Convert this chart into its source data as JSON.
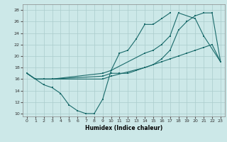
{
  "xlabel": "Humidex (Indice chaleur)",
  "ylabel": "",
  "xlim": [
    -0.5,
    23.5
  ],
  "ylim": [
    9.5,
    29.0
  ],
  "xticks": [
    0,
    1,
    2,
    3,
    4,
    5,
    6,
    7,
    8,
    9,
    10,
    11,
    12,
    13,
    14,
    15,
    16,
    17,
    18,
    19,
    20,
    21,
    22,
    23
  ],
  "yticks": [
    10,
    12,
    14,
    16,
    18,
    20,
    22,
    24,
    26,
    28
  ],
  "background_color": "#cce8e8",
  "grid_color": "#aacccc",
  "line_color": "#1a6b6b",
  "line1_x": [
    0,
    1,
    2,
    3,
    4,
    5,
    6,
    7,
    8,
    9,
    10,
    11,
    12,
    13,
    14,
    15,
    16,
    17
  ],
  "line1_y": [
    17.0,
    16.0,
    15.0,
    14.5,
    13.5,
    11.5,
    10.5,
    10.0,
    10.0,
    12.5,
    17.5,
    20.5,
    21.0,
    23.0,
    25.5,
    25.5,
    26.5,
    27.5
  ],
  "line2_x": [
    0,
    1,
    2,
    3,
    9,
    10,
    14,
    15,
    16,
    17,
    18,
    20,
    21,
    23
  ],
  "line2_y": [
    17.0,
    16.0,
    16.0,
    16.0,
    17.0,
    17.5,
    20.5,
    21.0,
    22.0,
    23.5,
    27.5,
    26.5,
    23.5,
    19.0
  ],
  "line3_x": [
    0,
    1,
    2,
    3,
    9,
    10,
    14,
    15,
    16,
    17,
    18,
    19,
    20,
    21,
    22,
    23
  ],
  "line3_y": [
    17.0,
    16.0,
    16.0,
    16.0,
    16.0,
    16.5,
    18.0,
    18.5,
    19.5,
    21.0,
    24.5,
    26.0,
    27.0,
    27.5,
    27.5,
    19.0
  ],
  "line4_x": [
    0,
    1,
    2,
    3,
    9,
    10,
    11,
    12,
    13,
    14,
    15,
    16,
    17,
    18,
    19,
    20,
    21,
    22,
    23
  ],
  "line4_y": [
    17.0,
    16.0,
    16.0,
    16.0,
    16.5,
    17.0,
    17.0,
    17.0,
    17.5,
    18.0,
    18.5,
    19.0,
    19.5,
    20.0,
    20.5,
    21.0,
    21.5,
    22.0,
    19.0
  ]
}
